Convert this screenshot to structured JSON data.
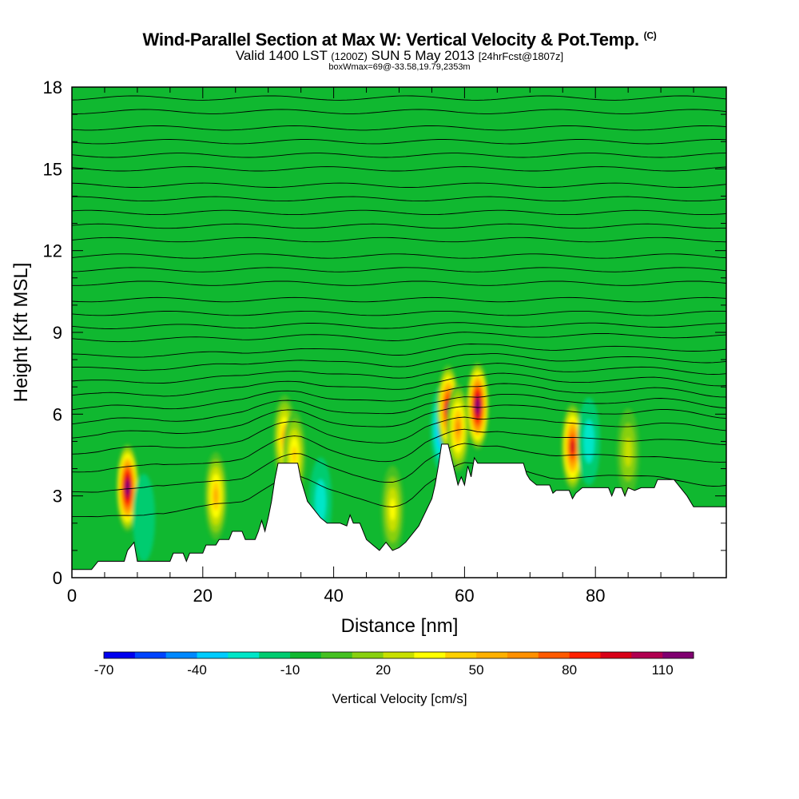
{
  "title": {
    "main": "Wind-Parallel Section at Max W: Vertical Velocity & Pot.Temp.",
    "copyright": "(C)",
    "valid_prefix": "Valid 1400 LST",
    "valid_utc": "(1200Z)",
    "valid_date": "SUN 5 May 2013",
    "forecast": "[24hrFcst@1807z]",
    "box_info": "boxWmax=69@-33.58,19.79,2353m"
  },
  "chart_data": {
    "type": "heatmap",
    "xlabel": "Distance [nm]",
    "ylabel": "Height [Kft MSL]",
    "xlim": [
      0,
      100
    ],
    "ylim": [
      0,
      18
    ],
    "x_ticks": [
      0,
      20,
      40,
      60,
      80
    ],
    "y_ticks": [
      0,
      3,
      6,
      9,
      12,
      15,
      18
    ],
    "colorbar": {
      "label": "Vertical Velocity [cm/s]",
      "min": -70,
      "max": 130,
      "step": 10,
      "tick_labels": [
        "-70",
        "-40",
        "-10",
        "20",
        "50",
        "80",
        "110"
      ],
      "colors": [
        "#0000ee",
        "#0044ff",
        "#0088ff",
        "#00ccff",
        "#00e6c8",
        "#00cc70",
        "#10b830",
        "#44c020",
        "#88d010",
        "#c8e000",
        "#ffff00",
        "#ffd000",
        "#ffb000",
        "#ff9000",
        "#ff5a00",
        "#ff2000",
        "#d80018",
        "#b00050",
        "#800070"
      ]
    },
    "terrain_kft": [
      [
        0,
        0.3
      ],
      [
        3,
        0.3
      ],
      [
        4,
        0.6
      ],
      [
        8,
        0.6
      ],
      [
        8.5,
        1.0
      ],
      [
        9.5,
        1.3
      ],
      [
        10,
        0.6
      ],
      [
        15,
        0.6
      ],
      [
        15.5,
        0.9
      ],
      [
        17,
        0.9
      ],
      [
        17.5,
        0.6
      ],
      [
        18,
        0.9
      ],
      [
        20,
        0.9
      ],
      [
        20.5,
        1.2
      ],
      [
        22,
        1.2
      ],
      [
        22.5,
        1.4
      ],
      [
        24,
        1.4
      ],
      [
        24.5,
        1.7
      ],
      [
        26,
        1.7
      ],
      [
        26.5,
        1.4
      ],
      [
        28,
        1.4
      ],
      [
        28.5,
        1.7
      ],
      [
        29,
        2.1
      ],
      [
        29.5,
        1.7
      ],
      [
        30,
        2.2
      ],
      [
        30.5,
        2.8
      ],
      [
        31,
        3.6
      ],
      [
        31.5,
        4.2
      ],
      [
        34.5,
        4.2
      ],
      [
        35,
        3.6
      ],
      [
        35.5,
        3.2
      ],
      [
        36,
        2.8
      ],
      [
        37,
        2.5
      ],
      [
        38,
        2.2
      ],
      [
        39,
        2.0
      ],
      [
        41,
        2.0
      ],
      [
        42,
        1.9
      ],
      [
        42.5,
        2.3
      ],
      [
        43,
        2.0
      ],
      [
        44,
        2.0
      ],
      [
        45,
        1.4
      ],
      [
        46,
        1.2
      ],
      [
        47,
        1.0
      ],
      [
        48,
        1.3
      ],
      [
        49,
        1.0
      ],
      [
        50,
        1.1
      ],
      [
        51,
        1.3
      ],
      [
        52,
        1.6
      ],
      [
        53,
        1.9
      ],
      [
        54,
        2.4
      ],
      [
        55,
        2.9
      ],
      [
        55.5,
        3.4
      ],
      [
        56,
        4.1
      ],
      [
        56.5,
        4.9
      ],
      [
        57.5,
        4.9
      ],
      [
        58,
        4.4
      ],
      [
        59,
        3.4
      ],
      [
        59.5,
        3.7
      ],
      [
        60,
        3.4
      ],
      [
        60.5,
        4.1
      ],
      [
        61,
        3.7
      ],
      [
        61.5,
        4.4
      ],
      [
        62,
        4.2
      ],
      [
        69,
        4.2
      ],
      [
        69.5,
        3.8
      ],
      [
        70,
        3.6
      ],
      [
        71,
        3.4
      ],
      [
        73,
        3.4
      ],
      [
        73.5,
        3.1
      ],
      [
        74,
        3.2
      ],
      [
        76,
        3.2
      ],
      [
        76.5,
        2.9
      ],
      [
        77,
        3.1
      ],
      [
        78,
        3.3
      ],
      [
        82,
        3.3
      ],
      [
        82.5,
        3.0
      ],
      [
        83,
        3.3
      ],
      [
        84,
        3.3
      ],
      [
        84.5,
        3.0
      ],
      [
        85,
        3.3
      ],
      [
        86,
        3.2
      ],
      [
        87,
        3.3
      ],
      [
        89,
        3.3
      ],
      [
        89.5,
        3.6
      ],
      [
        92,
        3.6
      ],
      [
        93,
        3.3
      ],
      [
        94,
        3.0
      ],
      [
        95,
        2.6
      ],
      [
        100,
        2.6
      ]
    ],
    "background_w_cms": -10,
    "w_features": [
      {
        "x": 8.5,
        "z": 3.3,
        "w": 120
      },
      {
        "x": 22,
        "z": 3.0,
        "w": 50
      },
      {
        "x": 32.5,
        "z": 5.1,
        "w": 50
      },
      {
        "x": 34,
        "z": 4.5,
        "w": 40
      },
      {
        "x": 56.5,
        "z": 5.5,
        "w": -50
      },
      {
        "x": 57.5,
        "z": 6.2,
        "w": 100
      },
      {
        "x": 59,
        "z": 5.5,
        "w": 60
      },
      {
        "x": 62,
        "z": 6.3,
        "w": 120
      },
      {
        "x": 76.5,
        "z": 4.8,
        "w": 90
      },
      {
        "x": 49,
        "z": 2.5,
        "w": 30
      },
      {
        "x": 11,
        "z": 2.2,
        "w": -20
      },
      {
        "x": 38,
        "z": 2.8,
        "w": -30
      },
      {
        "x": 79,
        "z": 5.0,
        "w": -25
      },
      {
        "x": 85,
        "z": 4.6,
        "w": 20
      }
    ],
    "isentrope_heights_kft": [
      2.0,
      3.0,
      3.8,
      4.5,
      5.1,
      5.6,
      6.1,
      6.6,
      7.1,
      7.6,
      8.1,
      8.7,
      9.2,
      9.7,
      10.2,
      10.8,
      11.3,
      11.8,
      12.4,
      12.9,
      13.4,
      13.9,
      14.4,
      15.0,
      15.5,
      16.0,
      16.5,
      17.1,
      17.6
    ]
  }
}
